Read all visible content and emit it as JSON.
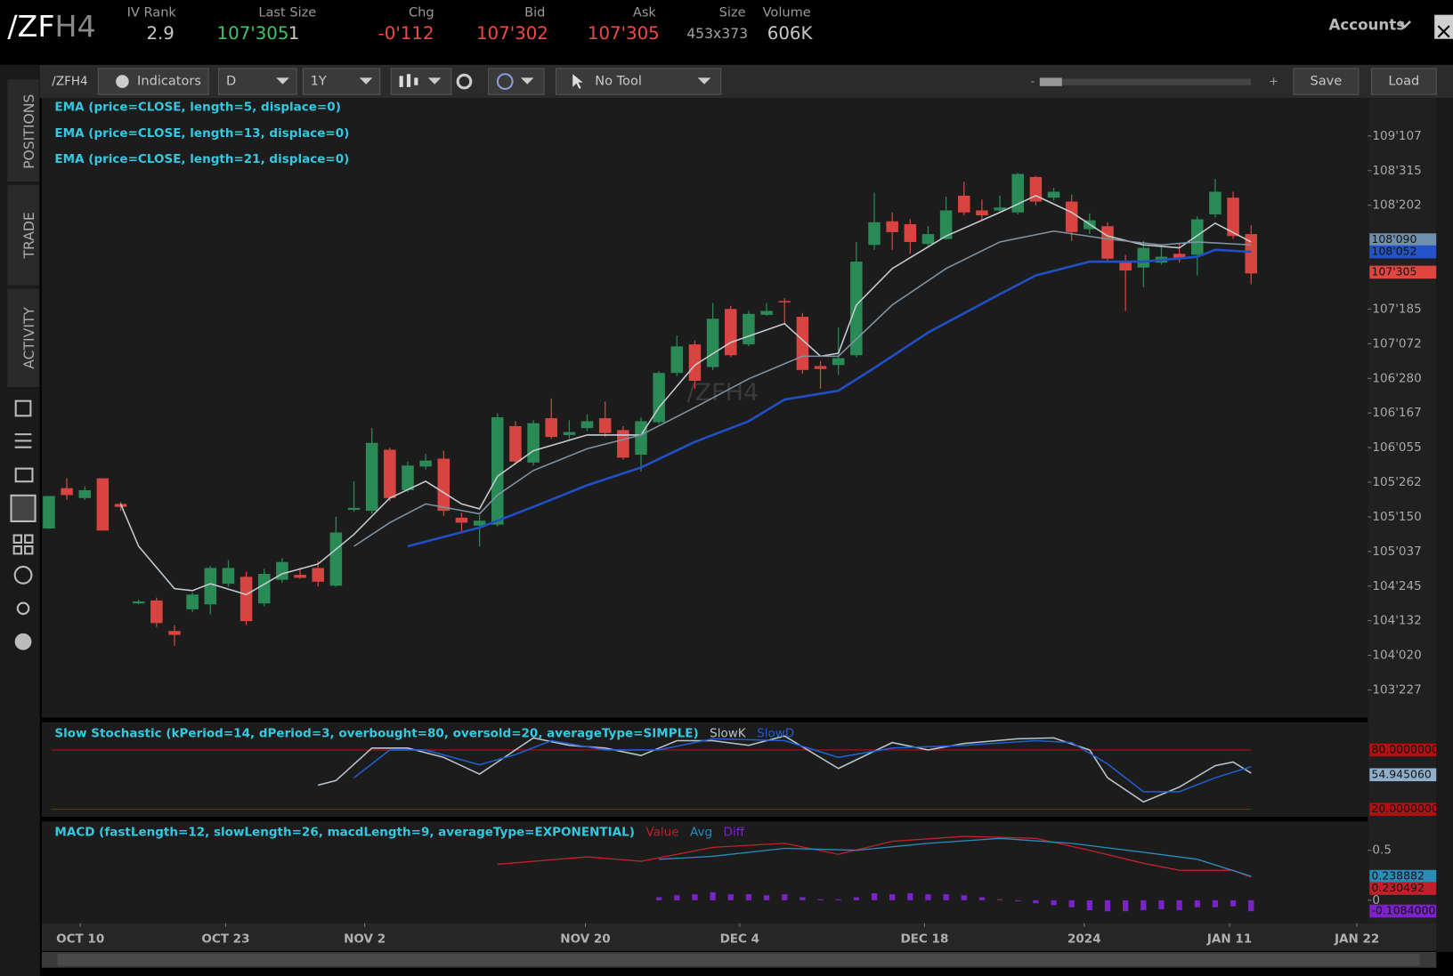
{
  "header": {
    "symbol_root": "/ZF",
    "symbol_month": "H4",
    "iv_rank_label": "IV Rank",
    "iv_rank": "2.9",
    "last_size_label": "Last Size",
    "last": "107'305",
    "size_last": "1",
    "chg_label": "Chg",
    "chg": "-0'112",
    "bid_label": "Bid",
    "bid": "107'302",
    "ask_label": "Ask",
    "ask": "107'305",
    "size_label": "Size",
    "size": "453x373",
    "volume_label": "Volume",
    "volume": "606K",
    "accounts": "Accounts"
  },
  "toolbar": {
    "symbol": "/ZFH4",
    "indicators": "Indicators",
    "aggregation": "D",
    "period": "1Y",
    "tool": "No Tool",
    "zoom_out": "-",
    "zoom_in": "+",
    "save": "Save",
    "load": "Load"
  },
  "sidebar": {
    "tabs": [
      "POSITIONS",
      "TRADE",
      "ACTIVITY"
    ]
  },
  "chart_data": [
    {
      "type": "candlestick",
      "watermark": "/ZFH4",
      "legend_color": "#33c8e0",
      "up_color": "#2a8a55",
      "down_color": "#d8443f",
      "xlim": [
        -0.4,
        73.5
      ],
      "ylim": [
        103.43,
        109.72
      ],
      "yticks": [
        {
          "value": 109.3359,
          "label": "109'107"
        },
        {
          "value": 108.9844,
          "label": "108'315"
        },
        {
          "value": 108.6328,
          "label": "108'202"
        },
        {
          "value": 107.5781,
          "label": "107'185"
        },
        {
          "value": 107.2266,
          "label": "107'072"
        },
        {
          "value": 106.875,
          "label": "106'280"
        },
        {
          "value": 106.5234,
          "label": "106'167"
        },
        {
          "value": 106.1719,
          "label": "106'055"
        },
        {
          "value": 105.8203,
          "label": "105'262"
        },
        {
          "value": 105.4688,
          "label": "105'150"
        },
        {
          "value": 105.1172,
          "label": "105'037"
        },
        {
          "value": 104.7656,
          "label": "104'245"
        },
        {
          "value": 104.4141,
          "label": "104'132"
        },
        {
          "value": 104.0625,
          "label": "104'020"
        },
        {
          "value": 103.7109,
          "label": "103'227"
        }
      ],
      "price_badges": [
        {
          "value": 108.2813,
          "label": "108'090",
          "color": "#6f8fae"
        },
        {
          "value": 108.1641,
          "label": "108'052",
          "color": "#2452c8"
        },
        {
          "value": 107.9531,
          "label": "107'305",
          "color": "#e0453f"
        }
      ],
      "open": [
        105.35,
        105.76,
        105.66,
        105.86,
        105.6,
        104.59,
        104.62,
        104.31,
        104.53,
        104.58,
        104.79,
        104.86,
        104.59,
        104.83,
        104.88,
        104.95,
        104.77,
        105.54,
        105.53,
        106.15,
        105.74,
        105.98,
        106.06,
        105.46,
        105.38,
        105.39,
        106.39,
        106.02,
        106.47,
        106.3,
        106.37,
        106.47,
        106.35,
        106.1,
        106.43,
        106.93,
        107.22,
        106.99,
        107.58,
        107.22,
        107.52,
        107.66,
        107.5,
        107.0,
        107.01,
        107.11,
        108.23,
        108.47,
        108.44,
        108.24,
        108.29,
        108.73,
        108.58,
        108.58,
        108.56,
        108.92,
        108.71,
        108.67,
        108.39,
        108.42,
        108.07,
        108.0,
        108.05,
        108.14,
        108.13,
        108.54,
        108.71,
        108.34
      ],
      "high": [
        105.68,
        105.86,
        105.78,
        105.86,
        105.62,
        104.63,
        104.65,
        104.37,
        104.7,
        104.97,
        105.03,
        104.91,
        104.94,
        105.05,
        104.95,
        105.02,
        105.47,
        105.83,
        106.37,
        106.17,
        106.03,
        106.11,
        106.14,
        105.51,
        105.49,
        106.52,
        106.44,
        106.45,
        106.67,
        106.45,
        106.51,
        106.64,
        106.39,
        106.48,
        106.95,
        107.31,
        107.26,
        107.64,
        107.61,
        107.56,
        107.64,
        107.69,
        107.54,
        107.05,
        107.39,
        108.26,
        108.76,
        108.56,
        108.49,
        108.42,
        108.72,
        108.87,
        108.69,
        108.73,
        108.96,
        108.93,
        108.81,
        108.74,
        108.55,
        108.46,
        108.13,
        108.27,
        108.22,
        108.25,
        108.52,
        108.9,
        108.77,
        108.43
      ],
      "low": [
        105.35,
        105.64,
        105.64,
        105.33,
        105.53,
        104.58,
        104.35,
        104.16,
        104.5,
        104.48,
        104.76,
        104.37,
        104.56,
        104.8,
        104.84,
        104.76,
        104.76,
        105.52,
        105.5,
        105.63,
        105.72,
        105.95,
        105.48,
        105.31,
        105.17,
        105.37,
        106.0,
        105.99,
        106.26,
        106.26,
        106.34,
        106.28,
        106.05,
        105.93,
        106.41,
        106.9,
        106.77,
        106.96,
        107.09,
        107.2,
        107.51,
        107.43,
        106.92,
        106.77,
        106.91,
        107.09,
        108.18,
        108.18,
        108.14,
        108.22,
        108.28,
        108.53,
        108.48,
        108.56,
        108.54,
        108.63,
        108.68,
        108.27,
        108.34,
        108.06,
        107.56,
        107.8,
        108.03,
        108.05,
        107.92,
        108.51,
        108.29,
        107.83
      ],
      "close": [
        105.68,
        105.69,
        105.74,
        105.33,
        105.57,
        104.61,
        104.39,
        104.27,
        104.68,
        104.95,
        104.95,
        104.41,
        104.89,
        105.01,
        104.85,
        104.81,
        105.31,
        105.56,
        106.22,
        105.66,
        105.99,
        106.04,
        105.53,
        105.41,
        105.43,
        106.48,
        106.03,
        106.42,
        106.28,
        106.33,
        106.44,
        106.32,
        106.07,
        106.44,
        106.93,
        107.2,
        106.85,
        107.48,
        107.11,
        107.53,
        107.56,
        107.65,
        106.96,
        106.97,
        107.08,
        108.06,
        108.46,
        108.36,
        108.26,
        108.34,
        108.58,
        108.56,
        108.53,
        108.61,
        108.95,
        108.67,
        108.77,
        108.36,
        108.48,
        108.09,
        107.97,
        108.2,
        108.11,
        108.1,
        108.49,
        108.77,
        108.32,
        107.94
      ],
      "series": [
        {
          "name": "EMA (price=CLOSE, length=5, displace=0)",
          "color": "#c4ccd2",
          "width": 1.5,
          "x": [
            4,
            5,
            7,
            8,
            9,
            11,
            13,
            15,
            17,
            19,
            21,
            23,
            24,
            25,
            27,
            30,
            33,
            34,
            36,
            38,
            41,
            43,
            44,
            45,
            47,
            50,
            53,
            55,
            57,
            59,
            61,
            63,
            65,
            67
          ],
          "values": [
            105.6,
            105.17,
            104.74,
            104.72,
            104.79,
            104.68,
            104.89,
            104.99,
            105.29,
            105.66,
            105.83,
            105.6,
            105.55,
            105.88,
            106.14,
            106.3,
            106.3,
            106.58,
            107.01,
            107.24,
            107.43,
            107.1,
            107.13,
            107.62,
            107.99,
            108.32,
            108.56,
            108.73,
            108.56,
            108.32,
            108.23,
            108.2,
            108.45,
            108.26
          ]
        },
        {
          "name": "EMA (price=CLOSE, length=13, displace=0)",
          "color": "#7f93a3",
          "width": 1.5,
          "x": [
            17,
            19,
            21,
            24,
            25,
            27,
            30,
            33,
            36,
            39,
            42,
            44,
            47,
            50,
            53,
            56,
            59,
            62,
            64,
            67
          ],
          "values": [
            105.17,
            105.41,
            105.6,
            105.5,
            105.69,
            105.94,
            106.16,
            106.3,
            106.58,
            106.87,
            107.1,
            107.1,
            107.62,
            107.99,
            108.26,
            108.37,
            108.29,
            108.23,
            108.26,
            108.23
          ]
        },
        {
          "name": "EMA (price=CLOSE, length=21, displace=0)",
          "color": "#2050c8",
          "width": 2.5,
          "x": [
            20,
            24,
            27,
            30,
            33,
            36,
            39,
            41,
            44,
            46,
            49,
            53,
            55,
            58,
            61,
            64,
            65,
            67
          ],
          "values": [
            105.17,
            105.36,
            105.57,
            105.79,
            105.97,
            106.23,
            106.44,
            106.66,
            106.75,
            106.98,
            107.34,
            107.73,
            107.92,
            108.06,
            108.06,
            108.11,
            108.18,
            108.16
          ]
        }
      ]
    },
    {
      "type": "line",
      "title": "Slow Stochastic (kPeriod=14, dPeriod=3, overbought=80, oversold=20, averageType=SIMPLE)",
      "legend_color": "#33c8e0",
      "tick_color": "#b01010",
      "xlim": [
        -0.4,
        73.5
      ],
      "ylim": [
        12.5,
        108
      ],
      "yticks": [
        {
          "value": 80,
          "label": "80.0000000"
        },
        {
          "value": 20,
          "label": "20.0000000"
        }
      ],
      "value_badges": [
        {
          "value": 54.945,
          "label": "54.945060",
          "color": "#8fb0cc"
        }
      ],
      "series": [
        {
          "name": "SlowK",
          "color": "#b8c4cc",
          "width": 1.5,
          "x": [
            15,
            16,
            18,
            20,
            22,
            24,
            25,
            27,
            29,
            31,
            33,
            35,
            37,
            39,
            41,
            44,
            47,
            49,
            51,
            54,
            56,
            58,
            59,
            61,
            63,
            65,
            66,
            67
          ],
          "values": [
            44.4,
            49.1,
            81.9,
            81.9,
            72.5,
            55.6,
            67.8,
            92.2,
            84.7,
            81.9,
            74.4,
            89.4,
            89.4,
            84.7,
            94.1,
            61.3,
            87.5,
            80.0,
            86.6,
            91.3,
            92.2,
            80.0,
            51.9,
            27.5,
            42.5,
            64.1,
            67.8,
            56.6
          ]
        },
        {
          "name": "SlowD",
          "color": "#1f5fd0",
          "width": 1.5,
          "x": [
            17,
            19,
            21,
            24,
            26,
            28,
            31,
            34,
            37,
            41,
            44,
            47,
            51,
            55,
            57,
            59,
            61,
            63,
            65,
            67
          ],
          "values": [
            51.9,
            80.0,
            80.0,
            65.0,
            75.3,
            89.4,
            80.0,
            80.0,
            91.3,
            89.4,
            72.5,
            81.9,
            84.7,
            89.4,
            87.5,
            65.9,
            37.8,
            37.8,
            51.9,
            63.1
          ]
        }
      ]
    },
    {
      "type": "line",
      "title": "MACD (fastLength=12, slowLength=26, macdLength=9, averageType=EXPONENTIAL)",
      "legend_color": "#33c8e0",
      "xlim": [
        -0.4,
        73.5
      ],
      "ylim": [
        -0.23,
        0.79
      ],
      "yticks": [
        0.5,
        0
      ],
      "value_badges": [
        {
          "value": 0.238882,
          "label": "0.238882",
          "color": "#2a8ab8"
        },
        {
          "value": 0.230492,
          "label": "0.230492",
          "color": "#c0202a"
        },
        {
          "value": -0.1084,
          "label": "-0.1084000",
          "color": "#7b22c8"
        }
      ],
      "xticks": [
        {
          "value": 1.75,
          "label": "OCT 10"
        },
        {
          "value": 9.85,
          "label": "OCT 23"
        },
        {
          "value": 17.6,
          "label": "NOV 2"
        },
        {
          "value": 29.9,
          "label": "NOV 20"
        },
        {
          "value": 38.5,
          "label": "DEC 4"
        },
        {
          "value": 48.8,
          "label": "DEC 18"
        },
        {
          "value": 57.7,
          "label": "2024"
        },
        {
          "value": 65.8,
          "label": "JAN 11"
        },
        {
          "value": 72.9,
          "label": "JAN 22"
        }
      ],
      "series": [
        {
          "name": "Value",
          "color": "#c0202a",
          "width": 1.3,
          "x": [
            25,
            30,
            33,
            37,
            41,
            44,
            47,
            51,
            55,
            58,
            61,
            63,
            66,
            67
          ],
          "values": [
            0.36,
            0.435,
            0.39,
            0.53,
            0.57,
            0.46,
            0.59,
            0.64,
            0.62,
            0.5,
            0.37,
            0.3,
            0.3,
            0.23
          ]
        },
        {
          "name": "Avg",
          "color": "#2a8ab8",
          "width": 1.3,
          "x": [
            34,
            37,
            41,
            45,
            49,
            53,
            57,
            61,
            64,
            67
          ],
          "values": [
            0.41,
            0.44,
            0.52,
            0.5,
            0.57,
            0.62,
            0.57,
            0.48,
            0.41,
            0.24
          ]
        },
        {
          "name": "Diff",
          "color": "#7b22c8",
          "style": "bar",
          "x": [
            34,
            35,
            36,
            37,
            38,
            39,
            40,
            41,
            42,
            43,
            44,
            45,
            46,
            47,
            48,
            49,
            50,
            51,
            52,
            53,
            54,
            55,
            56,
            57,
            58,
            59,
            60,
            61,
            62,
            63,
            64,
            65,
            66,
            67
          ],
          "values": [
            0.03,
            0.05,
            0.06,
            0.08,
            0.06,
            0.06,
            0.05,
            0.06,
            0.03,
            0.01,
            0.01,
            0.03,
            0.07,
            0.06,
            0.07,
            0.06,
            0.06,
            0.05,
            0.03,
            0.01,
            0.0,
            -0.03,
            -0.05,
            -0.07,
            -0.1,
            -0.11,
            -0.11,
            -0.1,
            -0.09,
            -0.1,
            -0.07,
            -0.07,
            -0.06,
            -0.11
          ]
        }
      ]
    }
  ]
}
